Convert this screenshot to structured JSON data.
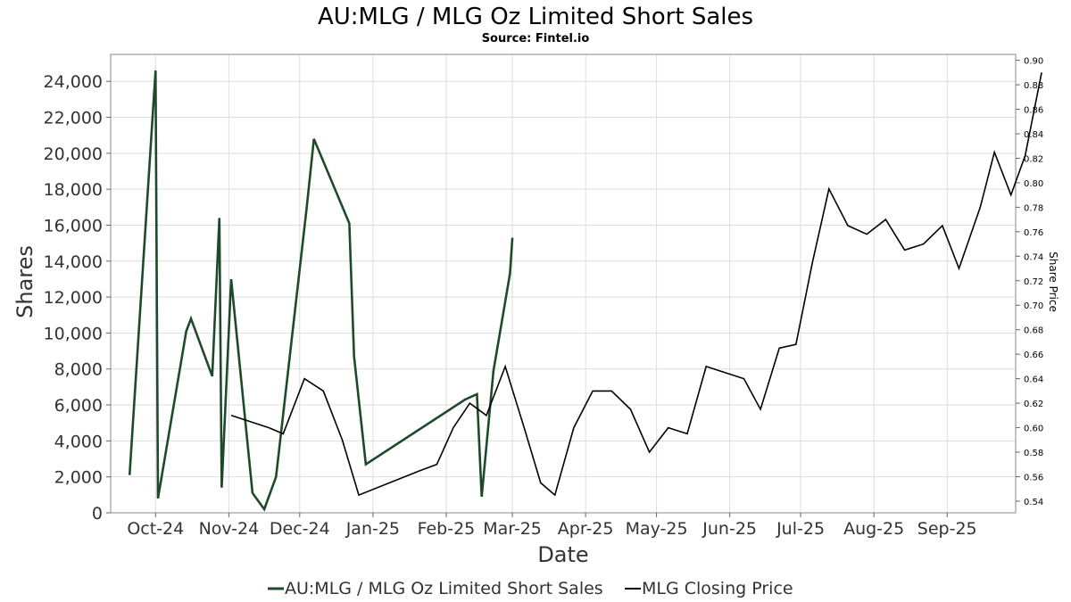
{
  "chart_data": {
    "type": "line",
    "title": "AU:MLG / MLG Oz Limited Short Sales",
    "subtitle": "Source: Fintel.io",
    "xlabel": "Date",
    "ylabel": "Shares",
    "y2label": "Share Price",
    "xlim": [
      "2024-09-12",
      "2025-09-30"
    ],
    "ylim": [
      0,
      25500
    ],
    "y2lim": [
      0.5305,
      0.9048
    ],
    "grid": true,
    "legend_position": "bottom",
    "x_ticks": [
      {
        "date": "2024-10-01",
        "label": "Oct-24"
      },
      {
        "date": "2024-11-01",
        "label": "Nov-24"
      },
      {
        "date": "2024-12-01",
        "label": "Dec-24"
      },
      {
        "date": "2025-01-01",
        "label": "Jan-25"
      },
      {
        "date": "2025-02-01",
        "label": "Feb-25"
      },
      {
        "date": "2025-03-01",
        "label": "Mar-25"
      },
      {
        "date": "2025-04-01",
        "label": "Apr-25"
      },
      {
        "date": "2025-05-01",
        "label": "May-25"
      },
      {
        "date": "2025-06-01",
        "label": "Jun-25"
      },
      {
        "date": "2025-07-01",
        "label": "Jul-25"
      },
      {
        "date": "2025-08-01",
        "label": "Aug-25"
      },
      {
        "date": "2025-09-01",
        "label": "Sep-25"
      }
    ],
    "y_ticks": [
      {
        "value": 0,
        "label": "0"
      },
      {
        "value": 2000,
        "label": "2,000"
      },
      {
        "value": 4000,
        "label": "4,000"
      },
      {
        "value": 6000,
        "label": "6,000"
      },
      {
        "value": 8000,
        "label": "8,000"
      },
      {
        "value": 10000,
        "label": "10,000"
      },
      {
        "value": 12000,
        "label": "12,000"
      },
      {
        "value": 14000,
        "label": "14,000"
      },
      {
        "value": 16000,
        "label": "16,000"
      },
      {
        "value": 18000,
        "label": "18,000"
      },
      {
        "value": 20000,
        "label": "20,000"
      },
      {
        "value": 22000,
        "label": "22,000"
      },
      {
        "value": 24000,
        "label": "24,000"
      }
    ],
    "y2_ticks": [
      {
        "value": 0.54,
        "label": "0.54"
      },
      {
        "value": 0.56,
        "label": "0.56"
      },
      {
        "value": 0.58,
        "label": "0.58"
      },
      {
        "value": 0.6,
        "label": "0.60"
      },
      {
        "value": 0.62,
        "label": "0.62"
      },
      {
        "value": 0.64,
        "label": "0.64"
      },
      {
        "value": 0.66,
        "label": "0.66"
      },
      {
        "value": 0.68,
        "label": "0.68"
      },
      {
        "value": 0.7,
        "label": "0.70"
      },
      {
        "value": 0.72,
        "label": "0.72"
      },
      {
        "value": 0.74,
        "label": "0.74"
      },
      {
        "value": 0.76,
        "label": "0.76"
      },
      {
        "value": 0.78,
        "label": "0.78"
      },
      {
        "value": 0.8,
        "label": "0.80"
      },
      {
        "value": 0.82,
        "label": "0.82"
      },
      {
        "value": 0.84,
        "label": "0.84"
      },
      {
        "value": 0.86,
        "label": "0.86"
      },
      {
        "value": 0.88,
        "label": "0.88"
      },
      {
        "value": 0.9,
        "label": "0.90"
      }
    ],
    "series": [
      {
        "name": "AU:MLG / MLG Oz Limited Short Sales",
        "axis": "left",
        "color": "#1f4a2a",
        "points": [
          [
            "2024-09-20",
            2100
          ],
          [
            "2024-10-01",
            24600
          ],
          [
            "2024-10-02",
            800
          ],
          [
            "2024-10-14",
            10100
          ],
          [
            "2024-10-16",
            10800
          ],
          [
            "2024-10-25",
            7600
          ],
          [
            "2024-10-28",
            16400
          ],
          [
            "2024-10-29",
            1400
          ],
          [
            "2024-11-02",
            13000
          ],
          [
            "2024-11-11",
            1100
          ],
          [
            "2024-11-16",
            200
          ],
          [
            "2024-11-21",
            2000
          ],
          [
            "2024-12-04",
            17000
          ],
          [
            "2024-12-07",
            20800
          ],
          [
            "2024-12-22",
            16100
          ],
          [
            "2024-12-24",
            8700
          ],
          [
            "2024-12-29",
            2700
          ],
          [
            "2025-02-09",
            6300
          ],
          [
            "2025-02-14",
            6600
          ],
          [
            "2025-02-16",
            900
          ],
          [
            "2025-02-21",
            7900
          ],
          [
            "2025-02-28",
            13300
          ],
          [
            "2025-03-01",
            15300
          ]
        ]
      },
      {
        "name": "MLG Closing Price",
        "axis": "right",
        "color": "#000000",
        "points": [
          [
            "2024-11-02",
            0.61
          ],
          [
            "2024-11-18",
            0.6
          ],
          [
            "2024-11-24",
            0.595
          ],
          [
            "2024-12-03",
            0.64
          ],
          [
            "2024-12-11",
            0.63
          ],
          [
            "2024-12-19",
            0.59
          ],
          [
            "2024-12-26",
            0.545
          ],
          [
            "2025-01-21",
            0.565
          ],
          [
            "2025-01-28",
            0.57
          ],
          [
            "2025-02-04",
            0.6
          ],
          [
            "2025-02-11",
            0.62
          ],
          [
            "2025-02-18",
            0.61
          ],
          [
            "2025-02-26",
            0.65
          ],
          [
            "2025-03-06",
            0.6
          ],
          [
            "2025-03-13",
            0.555
          ],
          [
            "2025-03-19",
            0.545
          ],
          [
            "2025-03-27",
            0.6
          ],
          [
            "2025-04-04",
            0.63
          ],
          [
            "2025-04-12",
            0.63
          ],
          [
            "2025-04-20",
            0.615
          ],
          [
            "2025-04-28",
            0.58
          ],
          [
            "2025-05-06",
            0.6
          ],
          [
            "2025-05-14",
            0.595
          ],
          [
            "2025-05-22",
            0.65
          ],
          [
            "2025-06-07",
            0.64
          ],
          [
            "2025-06-14",
            0.615
          ],
          [
            "2025-06-22",
            0.665
          ],
          [
            "2025-06-29",
            0.668
          ],
          [
            "2025-07-06",
            0.735
          ],
          [
            "2025-07-13",
            0.795
          ],
          [
            "2025-07-21",
            0.765
          ],
          [
            "2025-07-29",
            0.758
          ],
          [
            "2025-08-06",
            0.77
          ],
          [
            "2025-08-14",
            0.745
          ],
          [
            "2025-08-22",
            0.75
          ],
          [
            "2025-08-30",
            0.765
          ],
          [
            "2025-09-06",
            0.73
          ],
          [
            "2025-09-15",
            0.78
          ],
          [
            "2025-09-21",
            0.825
          ],
          [
            "2025-09-28",
            0.79
          ],
          [
            "2025-10-04",
            0.822
          ],
          [
            "2025-10-11",
            0.89
          ]
        ]
      }
    ]
  }
}
